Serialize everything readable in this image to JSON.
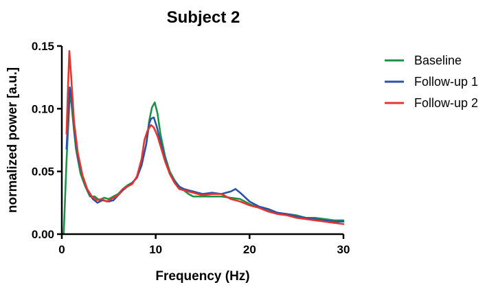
{
  "chart_data": {
    "type": "line",
    "title": "Subject 2",
    "xlabel": "Frequency (Hz)",
    "ylabel": "normalized power [a.u.]",
    "xlim": [
      0,
      30
    ],
    "ylim": [
      0,
      0.15
    ],
    "x_ticks": [
      {
        "value": 0,
        "label": "0"
      },
      {
        "value": 10,
        "label": "10"
      },
      {
        "value": 20,
        "label": "20"
      },
      {
        "value": 30,
        "label": "30"
      }
    ],
    "y_ticks": [
      {
        "value": 0,
        "label": "0.00"
      },
      {
        "value": 0.05,
        "label": "0.05"
      },
      {
        "value": 0.1,
        "label": "0.10"
      },
      {
        "value": 0.15,
        "label": "0.15"
      }
    ],
    "grid": false,
    "legend_position": "right",
    "series": [
      {
        "name": "Baseline",
        "color": "#1e9146",
        "points": [
          [
            0.2,
            0
          ],
          [
            0.5,
            0.058
          ],
          [
            0.8,
            0.104
          ],
          [
            0.95,
            0.11
          ],
          [
            1.2,
            0.09
          ],
          [
            1.5,
            0.068
          ],
          [
            2.0,
            0.048
          ],
          [
            2.5,
            0.038
          ],
          [
            3.0,
            0.03
          ],
          [
            3.5,
            0.03
          ],
          [
            4.0,
            0.027
          ],
          [
            4.5,
            0.029
          ],
          [
            5.0,
            0.028
          ],
          [
            5.5,
            0.03
          ],
          [
            6.0,
            0.032
          ],
          [
            6.5,
            0.036
          ],
          [
            7.0,
            0.039
          ],
          [
            7.5,
            0.041
          ],
          [
            8.0,
            0.045
          ],
          [
            8.5,
            0.055
          ],
          [
            9.0,
            0.072
          ],
          [
            9.3,
            0.09
          ],
          [
            9.6,
            0.101
          ],
          [
            9.9,
            0.105
          ],
          [
            10.2,
            0.096
          ],
          [
            10.5,
            0.08
          ],
          [
            11.0,
            0.062
          ],
          [
            11.5,
            0.05
          ],
          [
            12.0,
            0.043
          ],
          [
            12.5,
            0.038
          ],
          [
            13.0,
            0.035
          ],
          [
            13.5,
            0.032
          ],
          [
            14.0,
            0.03
          ],
          [
            15.0,
            0.03
          ],
          [
            16.0,
            0.03
          ],
          [
            17.0,
            0.03
          ],
          [
            18.0,
            0.029
          ],
          [
            19.0,
            0.028
          ],
          [
            20.0,
            0.024
          ],
          [
            21.0,
            0.021
          ],
          [
            22.0,
            0.019
          ],
          [
            23.0,
            0.017
          ],
          [
            24.0,
            0.016
          ],
          [
            25.0,
            0.015
          ],
          [
            26.0,
            0.013
          ],
          [
            27.0,
            0.013
          ],
          [
            28.0,
            0.012
          ],
          [
            29.0,
            0.011
          ],
          [
            30.0,
            0.011
          ]
        ]
      },
      {
        "name": "Follow-up 1",
        "color": "#2c52a8",
        "points": [
          [
            0.5,
            0.068
          ],
          [
            0.7,
            0.098
          ],
          [
            0.85,
            0.117
          ],
          [
            1.1,
            0.105
          ],
          [
            1.4,
            0.078
          ],
          [
            1.8,
            0.058
          ],
          [
            2.3,
            0.044
          ],
          [
            2.8,
            0.034
          ],
          [
            3.3,
            0.028
          ],
          [
            3.8,
            0.025
          ],
          [
            4.3,
            0.027
          ],
          [
            5.0,
            0.026
          ],
          [
            5.5,
            0.027
          ],
          [
            6.0,
            0.031
          ],
          [
            6.5,
            0.035
          ],
          [
            7.0,
            0.038
          ],
          [
            7.5,
            0.041
          ],
          [
            8.0,
            0.045
          ],
          [
            8.5,
            0.055
          ],
          [
            9.0,
            0.072
          ],
          [
            9.3,
            0.088
          ],
          [
            9.5,
            0.092
          ],
          [
            9.8,
            0.093
          ],
          [
            10.1,
            0.086
          ],
          [
            10.5,
            0.074
          ],
          [
            11.0,
            0.06
          ],
          [
            11.5,
            0.048
          ],
          [
            12.0,
            0.042
          ],
          [
            12.5,
            0.038
          ],
          [
            13.0,
            0.036
          ],
          [
            13.5,
            0.035
          ],
          [
            14.0,
            0.034
          ],
          [
            15.0,
            0.032
          ],
          [
            16.0,
            0.033
          ],
          [
            17.0,
            0.032
          ],
          [
            18.0,
            0.034
          ],
          [
            18.5,
            0.036
          ],
          [
            19.0,
            0.033
          ],
          [
            20.0,
            0.026
          ],
          [
            21.0,
            0.022
          ],
          [
            22.0,
            0.02
          ],
          [
            23.0,
            0.017
          ],
          [
            24.0,
            0.016
          ],
          [
            25.0,
            0.014
          ],
          [
            26.0,
            0.013
          ],
          [
            27.0,
            0.012
          ],
          [
            28.0,
            0.011
          ],
          [
            29.0,
            0.01
          ],
          [
            30.0,
            0.01
          ]
        ]
      },
      {
        "name": "Follow-up 2",
        "color": "#e3342f",
        "points": [
          [
            0.5,
            0.08
          ],
          [
            0.65,
            0.115
          ],
          [
            0.8,
            0.146
          ],
          [
            1.0,
            0.125
          ],
          [
            1.3,
            0.09
          ],
          [
            1.7,
            0.065
          ],
          [
            2.2,
            0.047
          ],
          [
            2.7,
            0.036
          ],
          [
            3.2,
            0.03
          ],
          [
            3.7,
            0.027
          ],
          [
            4.2,
            0.028
          ],
          [
            4.8,
            0.026
          ],
          [
            5.5,
            0.029
          ],
          [
            6.0,
            0.031
          ],
          [
            6.5,
            0.036
          ],
          [
            7.0,
            0.038
          ],
          [
            7.5,
            0.04
          ],
          [
            8.0,
            0.046
          ],
          [
            8.5,
            0.06
          ],
          [
            8.8,
            0.075
          ],
          [
            9.1,
            0.082
          ],
          [
            9.5,
            0.087
          ],
          [
            9.8,
            0.085
          ],
          [
            10.2,
            0.078
          ],
          [
            10.6,
            0.068
          ],
          [
            11.0,
            0.058
          ],
          [
            11.5,
            0.048
          ],
          [
            12.0,
            0.041
          ],
          [
            12.5,
            0.036
          ],
          [
            13.0,
            0.035
          ],
          [
            14.0,
            0.033
          ],
          [
            15.0,
            0.031
          ],
          [
            16.0,
            0.032
          ],
          [
            17.0,
            0.032
          ],
          [
            17.5,
            0.03
          ],
          [
            18.0,
            0.028
          ],
          [
            18.5,
            0.027
          ],
          [
            19.0,
            0.026
          ],
          [
            20.0,
            0.023
          ],
          [
            21.0,
            0.021
          ],
          [
            22.0,
            0.018
          ],
          [
            23.0,
            0.016
          ],
          [
            24.0,
            0.015
          ],
          [
            25.0,
            0.013
          ],
          [
            26.0,
            0.012
          ],
          [
            27.0,
            0.011
          ],
          [
            28.0,
            0.01
          ],
          [
            29.0,
            0.009
          ],
          [
            30.0,
            0.008
          ]
        ]
      }
    ]
  }
}
